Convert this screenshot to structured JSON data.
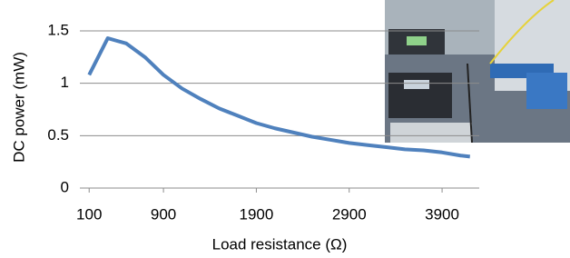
{
  "chart_data": {
    "type": "line",
    "x_label": "Load resistance (Ω)",
    "y_label": "DC power (mW)",
    "x": [
      100,
      300,
      500,
      700,
      900,
      1100,
      1300,
      1500,
      1700,
      1900,
      2100,
      2300,
      2500,
      2700,
      2900,
      3100,
      3300,
      3500,
      3700,
      3900,
      4100,
      4200
    ],
    "values": [
      1.08,
      1.43,
      1.38,
      1.25,
      1.08,
      0.95,
      0.85,
      0.76,
      0.69,
      0.62,
      0.57,
      0.53,
      0.49,
      0.46,
      0.43,
      0.41,
      0.39,
      0.37,
      0.36,
      0.34,
      0.31,
      0.3
    ],
    "color": "#4f81bd",
    "xlim": [
      0,
      4300
    ],
    "xticks": [
      100,
      900,
      1900,
      2900,
      3900
    ],
    "ylim": [
      0,
      1.5
    ],
    "yticks": [
      0,
      0.5,
      1,
      1.5
    ],
    "grid": true
  }
}
